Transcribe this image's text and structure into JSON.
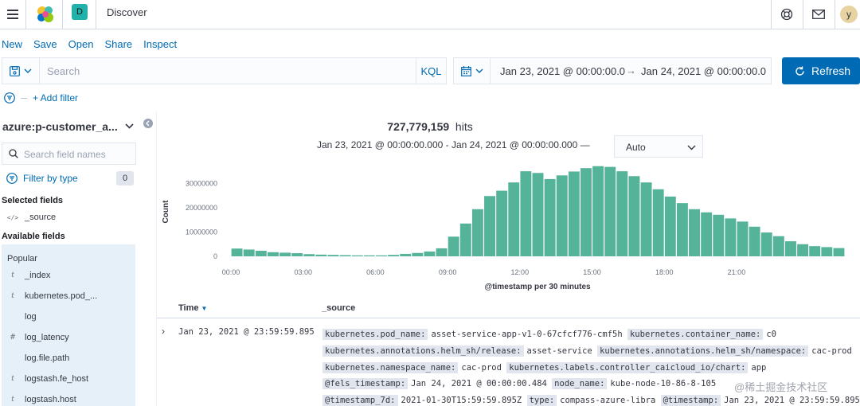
{
  "header": {
    "title": "Discover",
    "space_initial": "D",
    "avatar_initial": "y"
  },
  "toplinks": [
    "New",
    "Save",
    "Open",
    "Share",
    "Inspect"
  ],
  "query": {
    "placeholder": "Search",
    "lang": "KQL"
  },
  "datepicker": {
    "start": "Jan 23, 2021 @ 00:00:00.0",
    "arrow": "→",
    "end": "Jan 24, 2021 @ 00:00:00.0"
  },
  "refresh_label": "Refresh",
  "filters": {
    "add_label": "+ Add filter"
  },
  "sidebar": {
    "index_pattern": "azure:p-customer_a...",
    "search_placeholder": "Search field names",
    "filter_by_type": "Filter by type",
    "filter_count": "0",
    "selected_title": "Selected fields",
    "selected_fields": [
      {
        "type": "</>",
        "name": "_source"
      }
    ],
    "available_title": "Available fields",
    "popular_title": "Popular",
    "popular_fields": [
      {
        "type": "t",
        "name": "_index"
      },
      {
        "type": "t",
        "name": "kubernetes.pod_..."
      },
      {
        "type": "",
        "name": "log"
      },
      {
        "type": "#",
        "name": "log_latency"
      },
      {
        "type": "",
        "name": "log.file.path"
      },
      {
        "type": "t",
        "name": "logstash.fe_host"
      },
      {
        "type": "t",
        "name": "logstash.host"
      }
    ]
  },
  "hits": {
    "count": "727,779,159",
    "label": "hits"
  },
  "time_range": "Jan 23, 2021 @ 00:00:00.000 - Jan 24, 2021 @ 00:00:00.000 —",
  "interval": "Auto",
  "chart_data": {
    "type": "bar",
    "ylabel": "Count",
    "xlabel": "@timestamp per 30 minutes",
    "ylim": [
      0,
      40000000
    ],
    "yticks": [
      0,
      10000000,
      20000000,
      30000000
    ],
    "ytick_labels": [
      "0",
      "10000000",
      "20000000",
      "30000000"
    ],
    "xtick_labels": [
      "00:00",
      "03:00",
      "06:00",
      "09:00",
      "12:00",
      "15:00",
      "18:00",
      "21:00"
    ],
    "color": "#54b399",
    "values": [
      3200000,
      2800000,
      2300000,
      1700000,
      1500000,
      1300000,
      900000,
      700000,
      600000,
      500000,
      400000,
      400000,
      400000,
      600000,
      1000000,
      1400000,
      2000000,
      3300000,
      8100000,
      13500000,
      19400000,
      24800000,
      27000000,
      30400000,
      35000000,
      34300000,
      31800000,
      33300000,
      34900000,
      36300000,
      37100000,
      36800000,
      35000000,
      33000000,
      30400000,
      27600000,
      24600000,
      21900000,
      19400000,
      18100000,
      17100000,
      15600000,
      14300000,
      12200000,
      9800000,
      8300000,
      6200000,
      5000000,
      4200000,
      3800000,
      3400000
    ]
  },
  "table": {
    "col_time": "Time",
    "col_source": "_source",
    "rows": [
      {
        "time": "Jan 23, 2021 @ 23:59:59.895",
        "fields": [
          {
            "k": "kubernetes.pod_name:",
            "v": "asset-service-app-v1-0-67cfcf776-cmf5h"
          },
          {
            "k": "kubernetes.container_name:",
            "v": "c0"
          },
          {
            "k": "kubernetes.annotations.helm_sh/release:",
            "v": "asset-service"
          },
          {
            "k": "kubernetes.annotations.helm_sh/namespace:",
            "v": "cac-prod"
          },
          {
            "k": "kubernetes.namespace_name:",
            "v": "cac-prod"
          },
          {
            "k": "kubernetes.labels.controller_caicloud_io/chart:",
            "v": "app"
          },
          {
            "k": "@fels_timestamp:",
            "v": "Jan 24, 2021 @ 00:00:00.484"
          },
          {
            "k": "node_name:",
            "v": "kube-node-10-86-8-105"
          },
          {
            "k": "@timestamp_7d:",
            "v": "2021-01-30T15:59:59.895Z"
          },
          {
            "k": "type:",
            "v": "compass-azure-libra"
          },
          {
            "k": "@timestamp:",
            "v": "Jan 23, 2021 @ 23:59:59.895"
          }
        ]
      }
    ]
  },
  "watermark": "@稀土掘金技术社区"
}
